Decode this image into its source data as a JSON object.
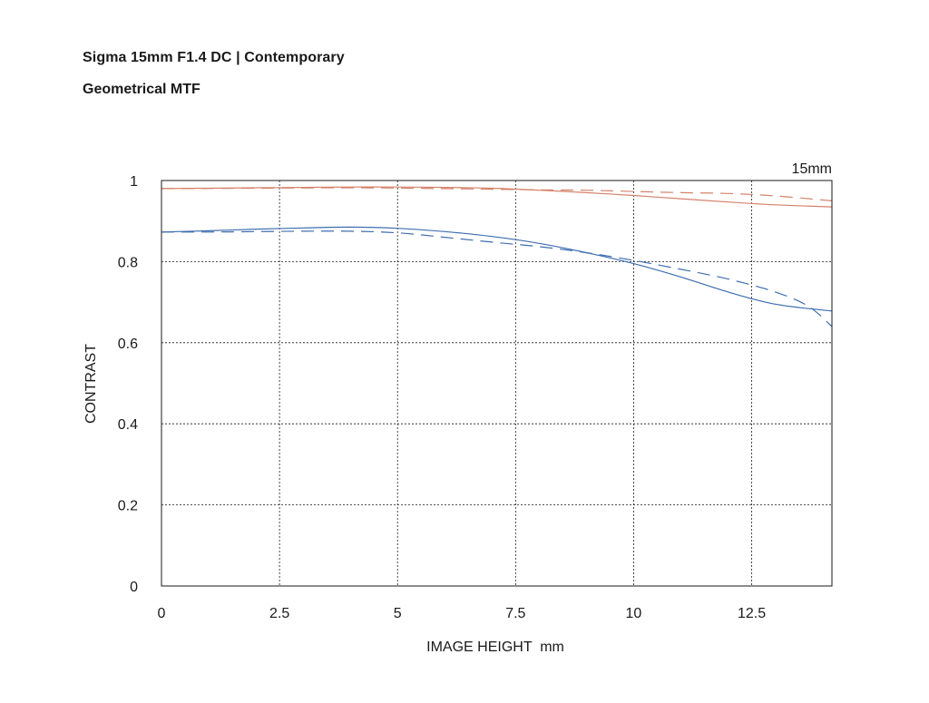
{
  "header": {
    "title": "Sigma 15mm F1.4 DC | Contemporary",
    "subtitle": "Geometrical MTF"
  },
  "chart_data": {
    "type": "line",
    "focal_length_label": "15mm",
    "xlabel": "IMAGE HEIGHT  mm",
    "ylabel": "CONTRAST",
    "xlim": [
      0,
      14.2
    ],
    "ylim": [
      0,
      1
    ],
    "x_ticks": [
      0,
      2.5,
      5,
      7.5,
      10,
      12.5
    ],
    "x_tick_labels": [
      "0",
      "2.5",
      "5",
      "7.5",
      "10",
      "12.5"
    ],
    "y_ticks": [
      0,
      0.2,
      0.4,
      0.6,
      0.8,
      1
    ],
    "y_tick_labels": [
      "0",
      "0.2",
      "0.4",
      "0.6",
      "0.8",
      "1"
    ],
    "grid": true,
    "series": [
      {
        "color": "#d4826a",
        "dash": "solid",
        "points": [
          [
            0,
            0.98
          ],
          [
            1,
            0.981
          ],
          [
            2,
            0.982
          ],
          [
            3,
            0.983
          ],
          [
            4,
            0.984
          ],
          [
            5,
            0.984
          ],
          [
            6,
            0.983
          ],
          [
            7,
            0.981
          ],
          [
            8,
            0.976
          ],
          [
            9,
            0.97
          ],
          [
            10,
            0.963
          ],
          [
            11,
            0.955
          ],
          [
            12,
            0.947
          ],
          [
            13,
            0.94
          ],
          [
            14.2,
            0.935
          ]
        ]
      },
      {
        "color": "#d4826a",
        "dash": "dashed",
        "points": [
          [
            0,
            0.98
          ],
          [
            2,
            0.981
          ],
          [
            4,
            0.982
          ],
          [
            6,
            0.98
          ],
          [
            8,
            0.977
          ],
          [
            9,
            0.976
          ],
          [
            10,
            0.973
          ],
          [
            11,
            0.97
          ],
          [
            12,
            0.968
          ],
          [
            13,
            0.962
          ],
          [
            14.2,
            0.95
          ]
        ]
      },
      {
        "color": "#3e6db0",
        "dash": "solid",
        "points": [
          [
            0,
            0.873
          ],
          [
            1,
            0.876
          ],
          [
            2,
            0.88
          ],
          [
            3,
            0.883
          ],
          [
            4,
            0.885
          ],
          [
            5,
            0.882
          ],
          [
            6,
            0.874
          ],
          [
            7,
            0.862
          ],
          [
            8,
            0.845
          ],
          [
            9,
            0.822
          ],
          [
            10,
            0.795
          ],
          [
            11,
            0.762
          ],
          [
            12,
            0.725
          ],
          [
            13,
            0.695
          ],
          [
            14.2,
            0.678
          ]
        ]
      },
      {
        "color": "#3e6db0",
        "dash": "dashed",
        "points": [
          [
            0,
            0.873
          ],
          [
            1,
            0.873
          ],
          [
            2,
            0.874
          ],
          [
            3,
            0.875
          ],
          [
            4,
            0.875
          ],
          [
            5,
            0.871
          ],
          [
            6,
            0.86
          ],
          [
            7,
            0.848
          ],
          [
            8,
            0.837
          ],
          [
            9,
            0.822
          ],
          [
            10,
            0.803
          ],
          [
            11,
            0.781
          ],
          [
            12,
            0.757
          ],
          [
            13,
            0.725
          ],
          [
            13.7,
            0.69
          ],
          [
            14.2,
            0.64
          ]
        ]
      }
    ]
  }
}
